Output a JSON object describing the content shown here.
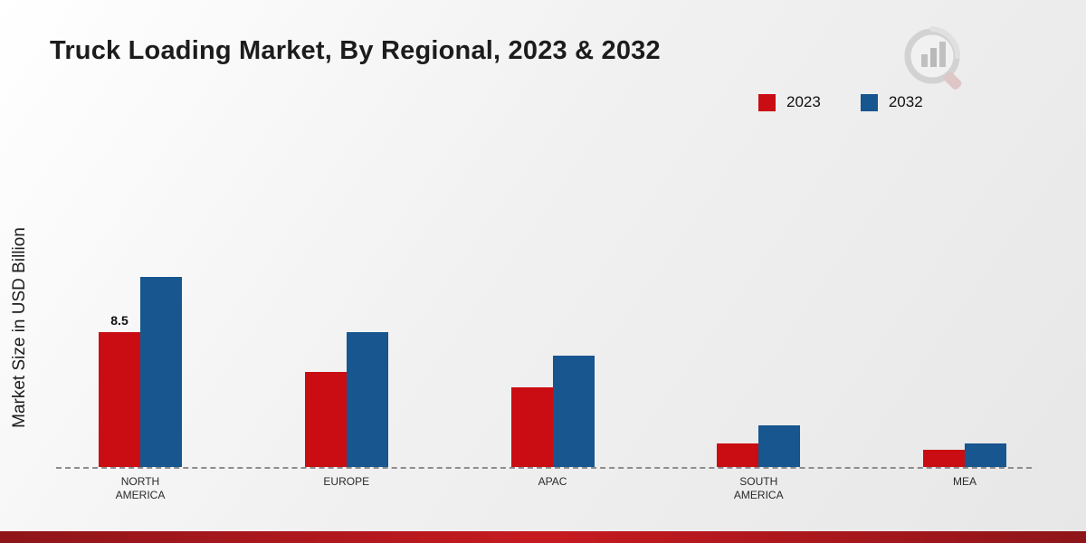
{
  "title": "Truck Loading Market, By Regional, 2023 & 2032",
  "y_axis_label": "Market Size in USD Billion",
  "legend": [
    {
      "label": "2023",
      "color": "#c90d12"
    },
    {
      "label": "2032",
      "color": "#17568f"
    }
  ],
  "logo_name": "market-research-logo",
  "chart_data": {
    "type": "bar",
    "title": "Truck Loading Market, By Regional, 2023 & 2032",
    "xlabel": "",
    "ylabel": "Market Size in USD Billion",
    "categories": [
      "NORTH AMERICA",
      "EUROPE",
      "APAC",
      "SOUTH AMERICA",
      "MEA"
    ],
    "series": [
      {
        "name": "2023",
        "color": "#c90d12",
        "values": [
          8.5,
          6.0,
          5.0,
          1.5,
          1.1
        ]
      },
      {
        "name": "2032",
        "color": "#17568f",
        "values": [
          12.0,
          8.5,
          7.0,
          2.6,
          1.5
        ]
      }
    ],
    "annotations": [
      {
        "category": "NORTH AMERICA",
        "series": "2023",
        "text": "8.5"
      }
    ],
    "ylim": [
      0,
      13
    ],
    "grid": false,
    "baseline_style": "dashed",
    "legend_position": "top-right"
  }
}
